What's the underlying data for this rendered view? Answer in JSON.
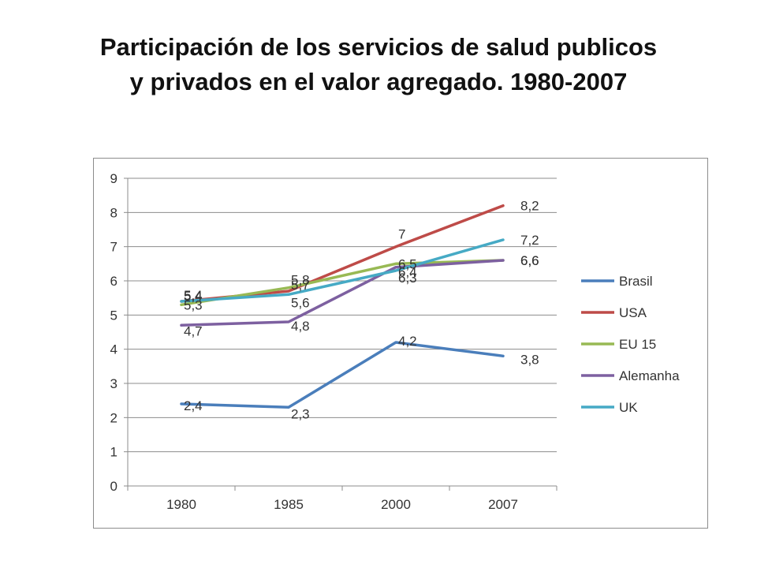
{
  "slide": {
    "title_line1": "Participación de los servicios de salud publicos",
    "title_line2": "y privados en el valor agregado. 1980-2007"
  },
  "chart_data": {
    "type": "line",
    "title": "",
    "xlabel": "",
    "ylabel": "",
    "categories": [
      "1980",
      "1985",
      "2000",
      "2007"
    ],
    "ylim": [
      0,
      9
    ],
    "yticks": [
      "0",
      "1",
      "2",
      "3",
      "4",
      "5",
      "6",
      "7",
      "8",
      "9"
    ],
    "grid": true,
    "legend": "right",
    "series": [
      {
        "name": "Brasil",
        "values": [
          2.4,
          2.3,
          4.2,
          3.8
        ],
        "labels": [
          "2,4",
          "2,3",
          "4,2",
          "3,8"
        ],
        "color": "#4a7ebb"
      },
      {
        "name": "USA",
        "values": [
          5.4,
          5.7,
          7.0,
          8.2
        ],
        "labels": [
          "5,4",
          "5,7",
          "7",
          "8,2"
        ],
        "color": "#be4b48"
      },
      {
        "name": "EU 15",
        "values": [
          5.3,
          5.8,
          6.5,
          6.6
        ],
        "labels": [
          "5,3",
          "5,8",
          "6,5",
          "6,6"
        ],
        "color": "#98b954"
      },
      {
        "name": "Alemanha",
        "values": [
          4.7,
          4.8,
          6.4,
          6.6
        ],
        "labels": [
          "4,7",
          "4,8",
          "6,4",
          "6,6"
        ],
        "color": "#7d60a0"
      },
      {
        "name": "UK",
        "values": [
          5.4,
          5.6,
          6.3,
          7.2
        ],
        "labels": [
          "5,4",
          "5,6",
          "6,3",
          "7,2"
        ],
        "color": "#46aac5"
      }
    ]
  }
}
